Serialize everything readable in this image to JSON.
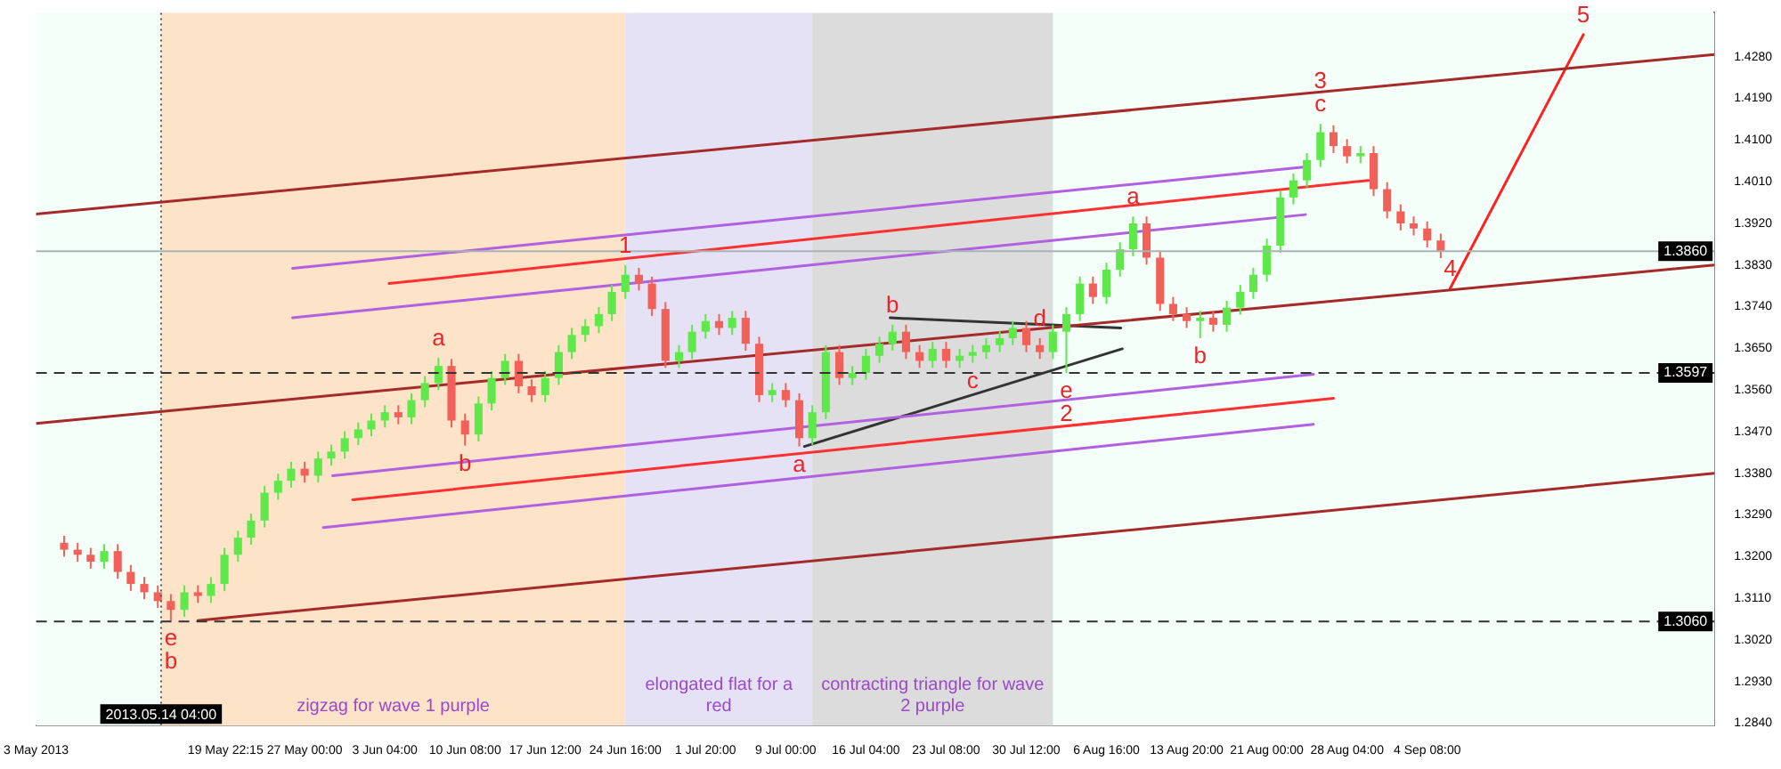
{
  "chart_data": {
    "type": "candlestick",
    "x": [
      "2013-05-05T12:00",
      "2013-05-06T17:00",
      "2013-05-07T21:00",
      "2013-05-09T02:00",
      "2013-05-10T07:00",
      "2013-05-11T11:00",
      "2013-05-12T16:00",
      "2013-05-13T21:00",
      "2013-05-15T01:00",
      "2013-05-16T06:00",
      "2013-05-17T11:00",
      "2013-05-18T15:00",
      "2013-05-19T20:00",
      "2013-05-21T01:00",
      "2013-05-22T05:00",
      "2013-05-23T10:00",
      "2013-05-24T15:00",
      "2013-05-25T19:00",
      "2013-05-27T00:00",
      "2013-05-28T05:00",
      "2013-05-29T09:00",
      "2013-05-30T14:00",
      "2013-05-31T19:00",
      "2013-06-01T23:00",
      "2013-06-03T04:00",
      "2013-06-04T09:00",
      "2013-06-05T13:00",
      "2013-06-06T18:00",
      "2013-06-07T23:00",
      "2013-06-09T03:00",
      "2013-06-10T08:00",
      "2013-06-11T13:00",
      "2013-06-12T17:00",
      "2013-06-13T22:00",
      "2013-06-15T03:00",
      "2013-06-16T07:00",
      "2013-06-17T12:00",
      "2013-06-18T17:00",
      "2013-06-19T21:00",
      "2013-06-21T02:00",
      "2013-06-22T07:00",
      "2013-06-23T11:00",
      "2013-06-24T16:00",
      "2013-06-25T21:00",
      "2013-06-27T01:00",
      "2013-06-28T06:00",
      "2013-06-29T11:00",
      "2013-06-30T15:00",
      "2013-07-01T20:00",
      "2013-07-03T01:00",
      "2013-07-04T05:00",
      "2013-07-05T10:00",
      "2013-07-06T15:00",
      "2013-07-07T19:00",
      "2013-07-09T00:00",
      "2013-07-10T05:00",
      "2013-07-11T09:00",
      "2013-07-12T14:00",
      "2013-07-13T19:00",
      "2013-07-14T23:00",
      "2013-07-16T04:00",
      "2013-07-17T09:00",
      "2013-07-18T13:00",
      "2013-07-19T18:00",
      "2013-07-20T23:00",
      "2013-07-22T03:00",
      "2013-07-23T08:00",
      "2013-07-24T13:00",
      "2013-07-25T17:00",
      "2013-07-26T22:00",
      "2013-07-28T03:00",
      "2013-07-29T07:00",
      "2013-07-30T12:00",
      "2013-07-31T17:00",
      "2013-08-01T21:00",
      "2013-08-03T02:00",
      "2013-08-04T07:00",
      "2013-08-05T11:00",
      "2013-08-06T16:00",
      "2013-08-07T21:00",
      "2013-08-09T01:00",
      "2013-08-10T06:00",
      "2013-08-11T11:00",
      "2013-08-12T15:00",
      "2013-08-13T20:00",
      "2013-08-15T01:00",
      "2013-08-16T05:00",
      "2013-08-17T10:00",
      "2013-08-18T15:00",
      "2013-08-19T19:00",
      "2013-08-21T00:00",
      "2013-08-22T05:00",
      "2013-08-23T09:00",
      "2013-08-24T14:00",
      "2013-08-25T19:00",
      "2013-08-26T23:00",
      "2013-08-28T04:00",
      "2013-08-29T09:00",
      "2013-08-30T13:00",
      "2013-08-31T18:00",
      "2013-09-01T23:00",
      "2013-09-03T03:00",
      "2013-09-04T08:00",
      "2013-09-05T13:00"
    ],
    "ohlc": [
      [
        1.323,
        1.3245,
        1.32,
        1.3215
      ],
      [
        1.3215,
        1.323,
        1.3189,
        1.3204
      ],
      [
        1.3204,
        1.3219,
        1.3174,
        1.3189
      ],
      [
        1.3189,
        1.3227,
        1.3174,
        1.3212
      ],
      [
        1.3212,
        1.3227,
        1.3152,
        1.3167
      ],
      [
        1.3167,
        1.3182,
        1.3126,
        1.3141
      ],
      [
        1.3141,
        1.3156,
        1.3108,
        1.3123
      ],
      [
        1.3123,
        1.3138,
        1.3089,
        1.3104
      ],
      [
        1.3104,
        1.3119,
        1.3062,
        1.3085
      ],
      [
        1.3085,
        1.3138,
        1.307,
        1.3123
      ],
      [
        1.3123,
        1.3138,
        1.31,
        1.3115
      ],
      [
        1.3115,
        1.3156,
        1.31,
        1.3141
      ],
      [
        1.3141,
        1.3219,
        1.3126,
        1.3204
      ],
      [
        1.3204,
        1.3256,
        1.3189,
        1.3241
      ],
      [
        1.3241,
        1.3293,
        1.3226,
        1.3278
      ],
      [
        1.3278,
        1.3353,
        1.3263,
        1.3338
      ],
      [
        1.3338,
        1.3379,
        1.3323,
        1.3364
      ],
      [
        1.3364,
        1.3405,
        1.3349,
        1.339
      ],
      [
        1.339,
        1.3405,
        1.336,
        1.3375
      ],
      [
        1.3375,
        1.3427,
        1.336,
        1.3412
      ],
      [
        1.3412,
        1.3442,
        1.3397,
        1.3427
      ],
      [
        1.3427,
        1.3471,
        1.3412,
        1.3456
      ],
      [
        1.3456,
        1.349,
        1.3441,
        1.3475
      ],
      [
        1.3475,
        1.3509,
        1.346,
        1.3494
      ],
      [
        1.3494,
        1.3527,
        1.3479,
        1.3512
      ],
      [
        1.3512,
        1.3527,
        1.3486,
        1.3501
      ],
      [
        1.3501,
        1.3553,
        1.3486,
        1.3538
      ],
      [
        1.3538,
        1.359,
        1.3523,
        1.3575
      ],
      [
        1.3575,
        1.363,
        1.356,
        1.3612
      ],
      [
        1.3612,
        1.3627,
        1.3479,
        1.3494
      ],
      [
        1.3494,
        1.3509,
        1.344,
        1.3464
      ],
      [
        1.3464,
        1.3546,
        1.3449,
        1.3531
      ],
      [
        1.3531,
        1.3601,
        1.3516,
        1.3586
      ],
      [
        1.3586,
        1.3638,
        1.3571,
        1.3623
      ],
      [
        1.3623,
        1.3638,
        1.3553,
        1.3568
      ],
      [
        1.3568,
        1.3583,
        1.3534,
        1.3549
      ],
      [
        1.3549,
        1.3601,
        1.3534,
        1.3586
      ],
      [
        1.3586,
        1.3657,
        1.3571,
        1.3642
      ],
      [
        1.3642,
        1.3694,
        1.3627,
        1.3679
      ],
      [
        1.3679,
        1.3713,
        1.3664,
        1.3698
      ],
      [
        1.3698,
        1.3739,
        1.3683,
        1.3724
      ],
      [
        1.3724,
        1.3787,
        1.3709,
        1.3772
      ],
      [
        1.3772,
        1.383,
        1.3757,
        1.3809
      ],
      [
        1.3809,
        1.3824,
        1.3775,
        1.379
      ],
      [
        1.379,
        1.3805,
        1.372,
        1.3735
      ],
      [
        1.3735,
        1.375,
        1.3608,
        1.3623
      ],
      [
        1.3623,
        1.3657,
        1.3608,
        1.3642
      ],
      [
        1.3642,
        1.3701,
        1.3627,
        1.3686
      ],
      [
        1.3686,
        1.3724,
        1.3671,
        1.3709
      ],
      [
        1.3709,
        1.3724,
        1.3679,
        1.3694
      ],
      [
        1.3694,
        1.3731,
        1.3679,
        1.3716
      ],
      [
        1.3716,
        1.3731,
        1.3645,
        1.366
      ],
      [
        1.366,
        1.3675,
        1.3534,
        1.3549
      ],
      [
        1.3549,
        1.3575,
        1.3534,
        1.356
      ],
      [
        1.356,
        1.3575,
        1.3523,
        1.3538
      ],
      [
        1.3538,
        1.3553,
        1.3438,
        1.3456
      ],
      [
        1.3456,
        1.3527,
        1.3441,
        1.3512
      ],
      [
        1.3512,
        1.3657,
        1.3497,
        1.3642
      ],
      [
        1.3642,
        1.3657,
        1.3571,
        1.3586
      ],
      [
        1.3586,
        1.3612,
        1.3571,
        1.3597
      ],
      [
        1.3597,
        1.3649,
        1.3582,
        1.3634
      ],
      [
        1.3634,
        1.3675,
        1.3619,
        1.366
      ],
      [
        1.366,
        1.3701,
        1.3645,
        1.3686
      ],
      [
        1.3686,
        1.3701,
        1.3627,
        1.3642
      ],
      [
        1.3642,
        1.3657,
        1.3608,
        1.3623
      ],
      [
        1.3623,
        1.3664,
        1.3608,
        1.3649
      ],
      [
        1.3649,
        1.3664,
        1.3608,
        1.3623
      ],
      [
        1.3623,
        1.3649,
        1.3608,
        1.3634
      ],
      [
        1.3634,
        1.3657,
        1.3619,
        1.3642
      ],
      [
        1.3642,
        1.3672,
        1.3627,
        1.3657
      ],
      [
        1.3657,
        1.3687,
        1.3642,
        1.3672
      ],
      [
        1.3672,
        1.3709,
        1.3657,
        1.3694
      ],
      [
        1.3694,
        1.3709,
        1.3642,
        1.3657
      ],
      [
        1.3657,
        1.3672,
        1.3627,
        1.3642
      ],
      [
        1.3642,
        1.3701,
        1.3627,
        1.3686
      ],
      [
        1.3686,
        1.3739,
        1.3597,
        1.3724
      ],
      [
        1.3724,
        1.3805,
        1.3709,
        1.379
      ],
      [
        1.379,
        1.3805,
        1.3746,
        1.3761
      ],
      [
        1.3761,
        1.3835,
        1.3746,
        1.382
      ],
      [
        1.382,
        1.3879,
        1.3805,
        1.3864
      ],
      [
        1.3864,
        1.3935,
        1.3849,
        1.392
      ],
      [
        1.392,
        1.3935,
        1.3831,
        1.3846
      ],
      [
        1.3846,
        1.3861,
        1.3731,
        1.3746
      ],
      [
        1.3746,
        1.3761,
        1.3709,
        1.3724
      ],
      [
        1.3724,
        1.3739,
        1.3694,
        1.3709
      ],
      [
        1.3709,
        1.3731,
        1.3672,
        1.3716
      ],
      [
        1.3716,
        1.3731,
        1.3686,
        1.3701
      ],
      [
        1.3701,
        1.3753,
        1.3686,
        1.3738
      ],
      [
        1.3738,
        1.3787,
        1.3723,
        1.3772
      ],
      [
        1.3772,
        1.3824,
        1.3757,
        1.3809
      ],
      [
        1.3809,
        1.3887,
        1.3794,
        1.3872
      ],
      [
        1.3872,
        1.3991,
        1.3857,
        1.3976
      ],
      [
        1.3976,
        1.4028,
        1.3961,
        1.4013
      ],
      [
        1.4013,
        1.4072,
        1.3998,
        1.4057
      ],
      [
        1.4057,
        1.4135,
        1.4042,
        1.4117
      ],
      [
        1.4117,
        1.4132,
        1.4072,
        1.4087
      ],
      [
        1.4087,
        1.4102,
        1.405,
        1.4065
      ],
      [
        1.4065,
        1.4087,
        1.405,
        1.4072
      ],
      [
        1.4072,
        1.4087,
        1.3979,
        1.3994
      ],
      [
        1.3994,
        1.4009,
        1.3931,
        1.3946
      ],
      [
        1.3946,
        1.3961,
        1.3905,
        1.392
      ],
      [
        1.392,
        1.3935,
        1.3894,
        1.3909
      ],
      [
        1.3909,
        1.3924,
        1.3868,
        1.3883
      ],
      [
        1.3883,
        1.3898,
        1.3845,
        1.386
      ]
    ],
    "colors": [
      "#f2605a",
      "#f2605a",
      "#f2605a",
      "#5ee84a",
      "#f2605a",
      "#f2605a",
      "#f2605a",
      "#f2605a",
      "#f2605a",
      "#5ee84a",
      "#f2605a",
      "#5ee84a",
      "#5ee84a",
      "#5ee84a",
      "#5ee84a",
      "#5ee84a",
      "#5ee84a",
      "#5ee84a",
      "#f2605a",
      "#5ee84a",
      "#5ee84a",
      "#5ee84a",
      "#5ee84a",
      "#5ee84a",
      "#5ee84a",
      "#f2605a",
      "#5ee84a",
      "#5ee84a",
      "#5ee84a",
      "#f2605a",
      "#f2605a",
      "#5ee84a",
      "#5ee84a",
      "#5ee84a",
      "#f2605a",
      "#f2605a",
      "#5ee84a",
      "#5ee84a",
      "#5ee84a",
      "#5ee84a",
      "#5ee84a",
      "#5ee84a",
      "#5ee84a",
      "#f2605a",
      "#f2605a",
      "#f2605a",
      "#5ee84a",
      "#5ee84a",
      "#5ee84a",
      "#f2605a",
      "#5ee84a",
      "#f2605a",
      "#f2605a",
      "#5ee84a",
      "#f2605a",
      "#f2605a",
      "#5ee84a",
      "#5ee84a",
      "#f2605a",
      "#5ee84a",
      "#5ee84a",
      "#5ee84a",
      "#5ee84a",
      "#f2605a",
      "#f2605a",
      "#5ee84a",
      "#f2605a",
      "#5ee84a",
      "#5ee84a",
      "#5ee84a",
      "#5ee84a",
      "#5ee84a",
      "#f2605a",
      "#f2605a",
      "#5ee84a",
      "#5ee84a",
      "#5ee84a",
      "#f2605a",
      "#5ee84a",
      "#5ee84a",
      "#5ee84a",
      "#f2605a",
      "#f2605a",
      "#f2605a",
      "#f2605a",
      "#5ee84a",
      "#f2605a",
      "#5ee84a",
      "#5ee84a",
      "#5ee84a",
      "#5ee84a",
      "#5ee84a",
      "#5ee84a",
      "#5ee84a",
      "#5ee84a",
      "#f2605a",
      "#f2605a",
      "#5ee84a",
      "#f2605a",
      "#f2605a",
      "#f2605a",
      "#f2605a",
      "#f2605a",
      "#f2605a"
    ],
    "series": [
      {
        "type": "line",
        "color": "#a52a2a",
        "x": [
          "2013-05-03",
          "2013-09-30"
        ],
        "values": [
          1.394,
          1.4285
        ]
      },
      {
        "type": "line",
        "color": "#a52a2a",
        "x": [
          "2013-05-03",
          "2013-09-30"
        ],
        "values": [
          1.3488,
          1.383
        ]
      },
      {
        "type": "line",
        "color": "#a52a2a",
        "x": [
          "2013-05-17T11:00",
          "2013-09-30"
        ],
        "values": [
          1.3062,
          1.338
        ]
      },
      {
        "type": "line",
        "color": "#ff2020",
        "x": [
          "2013-09-06T09:00",
          "2013-09-18T07:00"
        ],
        "values": [
          1.3779,
          1.4328
        ]
      },
      {
        "type": "line",
        "color": "#b060e0",
        "x": [
          "2013-05-25T22:00",
          "2013-08-24T11:00"
        ],
        "values": [
          1.3823,
          1.4042
        ]
      },
      {
        "type": "line",
        "color": "#b060e0",
        "x": [
          "2013-05-25T22:00",
          "2013-08-24T11:00"
        ],
        "values": [
          1.3716,
          1.3939
        ]
      },
      {
        "type": "line",
        "color": "#ff3030",
        "x": [
          "2013-06-03T13:00",
          "2013-08-30T02:00"
        ],
        "values": [
          1.379,
          1.4013
        ]
      },
      {
        "type": "line",
        "color": "#b060e0",
        "x": [
          "2013-05-29T12:00",
          "2013-08-25T04:00"
        ],
        "values": [
          1.3375,
          1.3594
        ]
      },
      {
        "type": "line",
        "color": "#ff3030",
        "x": [
          "2013-05-31T07:00",
          "2013-08-26T23:00"
        ],
        "values": [
          1.3323,
          1.3542
        ]
      },
      {
        "type": "line",
        "color": "#b060e0",
        "x": [
          "2013-05-28T16:00",
          "2013-08-25T04:00"
        ],
        "values": [
          1.3263,
          1.3486
        ]
      },
      {
        "type": "line",
        "color": "#333333",
        "x": [
          "2013-07-18T08:00",
          "2013-08-07T23:00"
        ],
        "values": [
          1.3716,
          1.3694
        ]
      },
      {
        "type": "line",
        "color": "#333333",
        "x": [
          "2013-07-10T16:00",
          "2013-08-08T02:00"
        ],
        "values": [
          1.3438,
          1.3649
        ]
      }
    ],
    "xlim": [
      "2013-05-03",
      "2013-09-30"
    ],
    "xticks": [
      {
        "value": "2013-05-03",
        "label": "3 May 2013"
      },
      {
        "value": "2013-05-19T22:15",
        "label": "19 May 22:15"
      },
      {
        "value": "2013-05-27T00:00",
        "label": "27 May 00:00"
      },
      {
        "value": "2013-06-03T04:00",
        "label": "3 Jun 04:00"
      },
      {
        "value": "2013-06-10T08:00",
        "label": "10 Jun 08:00"
      },
      {
        "value": "2013-06-17T12:00",
        "label": "17 Jun 12:00"
      },
      {
        "value": "2013-06-24T16:00",
        "label": "24 Jun 16:00"
      },
      {
        "value": "2013-07-01T20:00",
        "label": "1 Jul 20:00"
      },
      {
        "value": "2013-07-09T00:00",
        "label": "9 Jul 00:00"
      },
      {
        "value": "2013-07-16T04:00",
        "label": "16 Jul 04:00"
      },
      {
        "value": "2013-07-23T08:00",
        "label": "23 Jul 08:00"
      },
      {
        "value": "2013-07-30T12:00",
        "label": "30 Jul 12:00"
      },
      {
        "value": "2013-08-06T16:00",
        "label": "6 Aug 16:00"
      },
      {
        "value": "2013-08-13T20:00",
        "label": "13 Aug 20:00"
      },
      {
        "value": "2013-08-21T00:00",
        "label": "21 Aug 00:00"
      },
      {
        "value": "2013-08-28T04:00",
        "label": "28 Aug 04:00"
      },
      {
        "value": "2013-09-04T08:00",
        "label": "4 Sep 08:00"
      }
    ],
    "ylim": [
      1.2835,
      1.4375
    ],
    "yticks": [
      {
        "value": 1.284,
        "label": "1.2840"
      },
      {
        "value": 1.293,
        "label": "1.2930"
      },
      {
        "value": 1.302,
        "label": "1.3020"
      },
      {
        "value": 1.311,
        "label": "1.3110"
      },
      {
        "value": 1.32,
        "label": "1.3200"
      },
      {
        "value": 1.329,
        "label": "1.3290"
      },
      {
        "value": 1.338,
        "label": "1.3380"
      },
      {
        "value": 1.347,
        "label": "1.3470"
      },
      {
        "value": 1.356,
        "label": "1.3560"
      },
      {
        "value": 1.365,
        "label": "1.3650"
      },
      {
        "value": 1.374,
        "label": "1.3740"
      },
      {
        "value": 1.383,
        "label": "1.3830"
      },
      {
        "value": 1.392,
        "label": "1.3920"
      },
      {
        "value": 1.401,
        "label": "1.4010"
      },
      {
        "value": 1.41,
        "label": "1.4100"
      },
      {
        "value": 1.419,
        "label": "1.4190"
      },
      {
        "value": 1.428,
        "label": "1.4280"
      }
    ],
    "ref_lines": [
      {
        "axis": "x",
        "value": "2013-05-14T04:00",
        "label": "2013.05.14 04:00",
        "color": "#555555",
        "line_style": "dotted"
      },
      {
        "axis": "y",
        "value": 1.386,
        "label": "1.3860",
        "color": "#a8b4b4",
        "line_style": "solid"
      },
      {
        "axis": "y",
        "value": 1.3597,
        "label": "1.3597",
        "color": "#333333",
        "line_style": "dashed"
      },
      {
        "axis": "y",
        "value": 1.306,
        "label": "1.3060",
        "color": "#333333",
        "line_style": "dashed"
      }
    ],
    "bands": [
      {
        "axis": "x",
        "from": "2013-05-14T04:00",
        "to": "2013-06-24T16:00",
        "color": "#fde3c8",
        "label": "zigzag for wave 1 purple"
      },
      {
        "axis": "x",
        "from": "2013-06-24T16:00",
        "to": "2013-07-11T09:00",
        "color": "#e6e2f6",
        "label": "elongated flat for a red"
      },
      {
        "axis": "x",
        "from": "2013-07-11T09:00",
        "to": "2013-08-01T21:00",
        "color": "#dcdcdc",
        "label": "contracting triangle for wave 2 purple"
      }
    ],
    "annotations": [
      {
        "text": "1",
        "x": "2013-06-24T16:00",
        "y": 1.383
      },
      {
        "text": "a",
        "x": "2013-06-07T23:00",
        "y": 1.363
      },
      {
        "text": "b",
        "x": "2013-06-10T08:00",
        "y": 1.344
      },
      {
        "text": "a",
        "x": "2013-07-10T05:00",
        "y": 1.3438
      },
      {
        "text": "b",
        "x": "2013-07-18T13:00",
        "y": 1.3701
      },
      {
        "text": "c",
        "x": "2013-07-25T17:00",
        "y": 1.3619
      },
      {
        "text": "d",
        "x": "2013-07-31T17:00",
        "y": 1.3672
      },
      {
        "text": "e",
        "x": "2013-08-03T02:00",
        "y": 1.3597
      },
      {
        "text": "2",
        "x": "2013-08-03T02:00",
        "y": 1.3597
      },
      {
        "text": "a",
        "x": "2013-08-09T01:00",
        "y": 1.3935
      },
      {
        "text": "b",
        "x": "2013-08-15T01:00",
        "y": 1.3672
      },
      {
        "text": "c",
        "x": "2013-08-25T19:00",
        "y": 1.4135
      },
      {
        "text": "3",
        "x": "2013-08-25T19:00",
        "y": 1.4135
      },
      {
        "text": "4",
        "x": "2013-09-06T09:00",
        "y": 1.3779
      },
      {
        "text": "5",
        "x": "2013-09-18T07:00",
        "y": 1.4328
      },
      {
        "text": "e",
        "x": "2013-05-15T01:00",
        "y": 1.3062
      },
      {
        "text": "b",
        "x": "2013-05-15T01:00",
        "y": 1.3062
      }
    ]
  }
}
